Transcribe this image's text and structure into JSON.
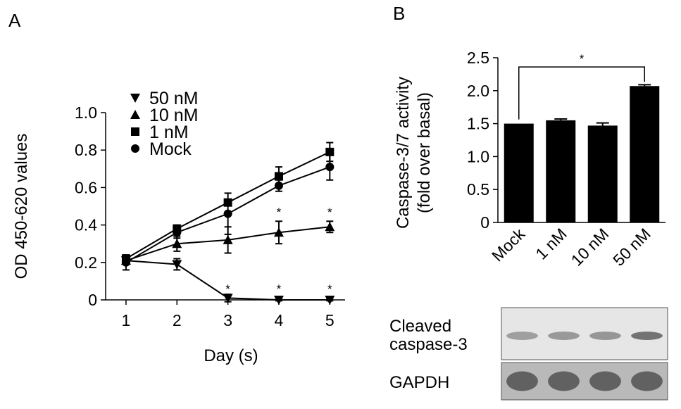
{
  "chart_data": [
    {
      "panel": "A",
      "type": "line",
      "xlabel": "Day (s)",
      "ylabel": "OD 450-620 values",
      "x": [
        1,
        2,
        3,
        4,
        5
      ],
      "xlim": [
        0.6,
        5.3
      ],
      "ylim": [
        0,
        1.0
      ],
      "yticks": [
        "0",
        "0.2",
        "0.4",
        "0.6",
        "0.8",
        "1.0"
      ],
      "xticks": [
        "1",
        "2",
        "3",
        "4",
        "5"
      ],
      "grid": false,
      "legend_position": "top-left",
      "series": [
        {
          "name": "50 nM",
          "marker": "triangle-down",
          "values": [
            0.21,
            0.19,
            0.01,
            0.0,
            0.0
          ],
          "errors": [
            0.02,
            0.03,
            0.02,
            0.005,
            0.005
          ]
        },
        {
          "name": "10 nM",
          "marker": "triangle-up",
          "values": [
            0.21,
            0.3,
            0.32,
            0.36,
            0.39
          ],
          "errors": [
            0.02,
            0.04,
            0.07,
            0.06,
            0.03
          ]
        },
        {
          "name": "1 nM",
          "marker": "square",
          "values": [
            0.22,
            0.38,
            0.52,
            0.66,
            0.79
          ],
          "errors": [
            0.02,
            0.02,
            0.01,
            0.05,
            0.05
          ]
        },
        {
          "name": "Mock",
          "marker": "circle",
          "values": [
            0.2,
            0.36,
            0.46,
            0.61,
            0.71
          ],
          "errors": [
            0.04,
            0.03,
            0.11,
            0.03,
            0.07
          ]
        }
      ],
      "annotations": [
        {
          "text": "*",
          "x": 3,
          "y": 0.06
        },
        {
          "text": "*",
          "x": 4,
          "y": 0.06
        },
        {
          "text": "*",
          "x": 5,
          "y": 0.06
        },
        {
          "text": "*",
          "x": 4,
          "y": 0.47
        },
        {
          "text": "*",
          "x": 5,
          "y": 0.47
        }
      ]
    },
    {
      "panel": "B",
      "type": "bar",
      "ylabel_line1": "Caspase-3/7 activity",
      "ylabel_line2": "(fold over basal)",
      "categories": [
        "Mock",
        "1 nM",
        "10 nM",
        "50 nM"
      ],
      "values": [
        1.5,
        1.55,
        1.47,
        2.07
      ],
      "errors": [
        0.0,
        0.02,
        0.04,
        0.02
      ],
      "ylim": [
        0,
        2.5
      ],
      "yticks": [
        "0",
        "0.5",
        "1.0",
        "1.5",
        "2.0",
        "2.5"
      ],
      "grid": false,
      "significance": {
        "from": "Mock",
        "to": "50 nM",
        "label": "*"
      }
    }
  ],
  "labels": {
    "panel_a": "A",
    "panel_b": "B"
  },
  "western_blot": {
    "rows": [
      {
        "label_line1": "Cleaved",
        "label_line2": "caspase-3",
        "intensities": [
          0.35,
          0.4,
          0.42,
          0.7
        ]
      },
      {
        "label_line1": "GAPDH",
        "label_line2": "",
        "intensities": [
          0.8,
          0.8,
          0.8,
          0.8
        ]
      }
    ]
  }
}
